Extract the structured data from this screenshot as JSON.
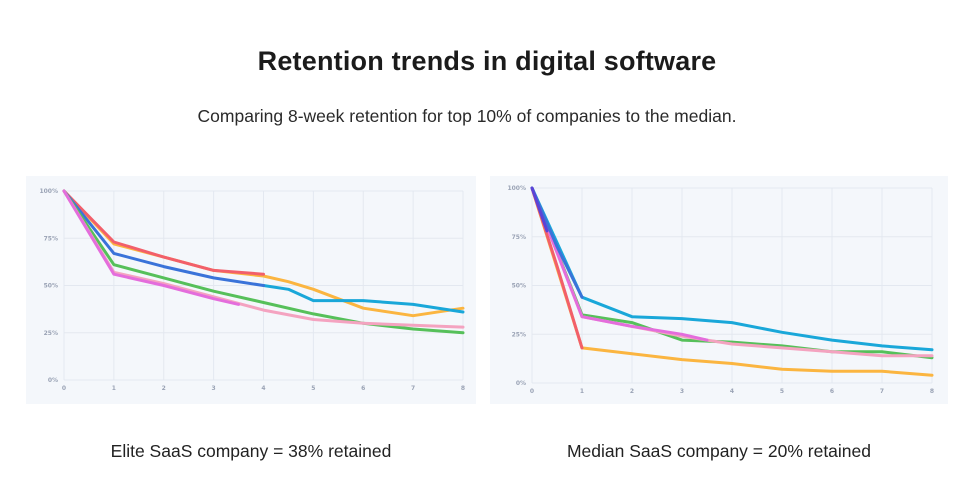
{
  "header": {
    "title": "Retention trends in digital software",
    "subtitle": "Comparing 8-week retention for top 10% of companies to the median."
  },
  "captions": {
    "left": "Elite SaaS company = 38% retained",
    "right": "Median SaaS company = 20% retained"
  },
  "chart_data": [
    {
      "type": "line",
      "title": "Elite SaaS company = 38% retained",
      "x": [
        0,
        1,
        2,
        3,
        4,
        5,
        6,
        7,
        8
      ],
      "x_tick_labels": [
        "0",
        "1",
        "2",
        "3",
        "4",
        "5",
        "6",
        "7",
        "8"
      ],
      "y_ticks": [
        0,
        25,
        50,
        75,
        100
      ],
      "y_tick_labels": [
        "0%",
        "25%",
        "50%",
        "75%",
        "100%"
      ],
      "xlim": [
        0,
        8
      ],
      "ylim": [
        0,
        100
      ],
      "grid": true,
      "series": [
        {
          "name": "orange",
          "color": "#fbb540",
          "points": [
            [
              0,
              100
            ],
            [
              1,
              72
            ],
            [
              2,
              65
            ],
            [
              3,
              58
            ],
            [
              4,
              55
            ],
            [
              4.5,
              52
            ],
            [
              5,
              48
            ],
            [
              6,
              38
            ],
            [
              7,
              34
            ],
            [
              8,
              38
            ]
          ]
        },
        {
          "name": "red",
          "color": "#f25f6a",
          "points": [
            [
              0,
              100
            ],
            [
              1,
              73
            ],
            [
              2,
              65
            ],
            [
              3,
              58
            ],
            [
              4,
              56
            ]
          ]
        },
        {
          "name": "cyan",
          "color": "#19a7d9",
          "points": [
            [
              4,
              50
            ],
            [
              4.5,
              48
            ],
            [
              5,
              42
            ],
            [
              6,
              42
            ],
            [
              7,
              40
            ],
            [
              8,
              36
            ]
          ]
        },
        {
          "name": "blue",
          "color": "#3a73d9",
          "points": [
            [
              0,
              100
            ],
            [
              1,
              67
            ],
            [
              2,
              60
            ],
            [
              3,
              54
            ],
            [
              4,
              50
            ]
          ]
        },
        {
          "name": "green",
          "color": "#56c05a",
          "points": [
            [
              0,
              100
            ],
            [
              1,
              61
            ],
            [
              2,
              54
            ],
            [
              3,
              47
            ],
            [
              4,
              41
            ],
            [
              5,
              35
            ],
            [
              6,
              30
            ],
            [
              7,
              27
            ],
            [
              8,
              25
            ]
          ]
        },
        {
          "name": "pink",
          "color": "#f4a3c0",
          "points": [
            [
              0,
              100
            ],
            [
              1,
              57
            ],
            [
              2,
              51
            ],
            [
              3,
              44
            ],
            [
              4,
              37
            ],
            [
              5,
              32
            ],
            [
              6,
              30
            ],
            [
              7,
              29
            ],
            [
              8,
              28
            ]
          ]
        },
        {
          "name": "magenta",
          "color": "#e46ddc",
          "points": [
            [
              0,
              100
            ],
            [
              1,
              56
            ],
            [
              2,
              50
            ],
            [
              3,
              43
            ],
            [
              3.5,
              40
            ]
          ]
        }
      ]
    },
    {
      "type": "line",
      "title": "Median SaaS company = 20% retained",
      "x": [
        0,
        1,
        2,
        3,
        4,
        5,
        6,
        7,
        8
      ],
      "x_tick_labels": [
        "0",
        "1",
        "2",
        "3",
        "4",
        "5",
        "6",
        "7",
        "8"
      ],
      "y_ticks": [
        0,
        25,
        50,
        75,
        100
      ],
      "y_tick_labels": [
        "0%",
        "25%",
        "50%",
        "75%",
        "100%"
      ],
      "xlim": [
        0,
        8
      ],
      "ylim": [
        0,
        100
      ],
      "grid": true,
      "series": [
        {
          "name": "orange",
          "color": "#fbb540",
          "points": [
            [
              0,
              100
            ],
            [
              1,
              18
            ],
            [
              2,
              15
            ],
            [
              3,
              12
            ],
            [
              4,
              10
            ],
            [
              5,
              7
            ],
            [
              6,
              6
            ],
            [
              7,
              6
            ],
            [
              8,
              4
            ]
          ]
        },
        {
          "name": "red",
          "color": "#f25f6a",
          "points": [
            [
              0,
              100
            ],
            [
              0.5,
              60
            ],
            [
              1,
              18
            ]
          ]
        },
        {
          "name": "green",
          "color": "#56c05a",
          "points": [
            [
              0,
              100
            ],
            [
              1,
              35
            ],
            [
              2,
              31
            ],
            [
              3,
              22
            ],
            [
              4,
              21
            ],
            [
              5,
              19
            ],
            [
              6,
              16
            ],
            [
              7,
              16
            ],
            [
              8,
              13
            ]
          ]
        },
        {
          "name": "pink",
          "color": "#f4a3c0",
          "points": [
            [
              0,
              100
            ],
            [
              1,
              34
            ],
            [
              2,
              29
            ],
            [
              3,
              24
            ],
            [
              4,
              20
            ],
            [
              5,
              18
            ],
            [
              6,
              16
            ],
            [
              7,
              14
            ],
            [
              8,
              14
            ]
          ]
        },
        {
          "name": "magenta",
          "color": "#e46ddc",
          "points": [
            [
              0,
              100
            ],
            [
              1,
              34
            ],
            [
              2,
              29
            ],
            [
              3,
              25
            ],
            [
              3.5,
              22
            ]
          ]
        },
        {
          "name": "cyan",
          "color": "#19a7d9",
          "points": [
            [
              0,
              100
            ],
            [
              1,
              44
            ],
            [
              2,
              34
            ],
            [
              3,
              33
            ],
            [
              4,
              31
            ],
            [
              5,
              26
            ],
            [
              6,
              22
            ],
            [
              7,
              19
            ],
            [
              8,
              17
            ]
          ]
        },
        {
          "name": "blue",
          "color": "#3a73d9",
          "points": [
            [
              0,
              100
            ],
            [
              0.5,
              70
            ],
            [
              1,
              44
            ]
          ]
        },
        {
          "name": "purple",
          "color": "#5b43d6",
          "points": [
            [
              0,
              100
            ],
            [
              0.3,
              78
            ]
          ]
        }
      ]
    }
  ]
}
